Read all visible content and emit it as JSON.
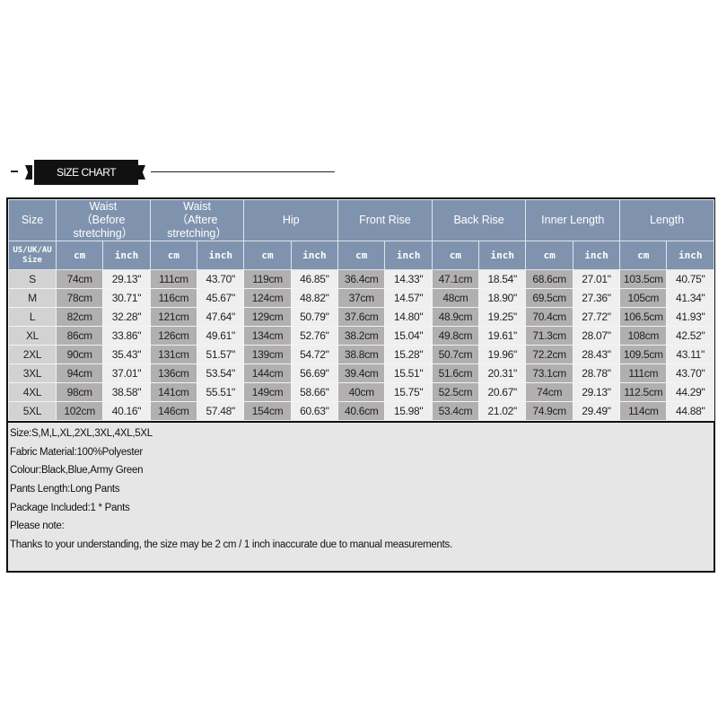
{
  "banner": {
    "title": "SIZE CHART"
  },
  "table": {
    "header_top": [
      {
        "label": "Size",
        "sub": ""
      },
      {
        "label": "Waist",
        "sub": "（Before stretching）"
      },
      {
        "label": "Waist",
        "sub": "（Aftere stretching）"
      },
      {
        "label": "Hip",
        "sub": ""
      },
      {
        "label": "Front Rise",
        "sub": ""
      },
      {
        "label": "Back Rise",
        "sub": ""
      },
      {
        "label": "Inner Length",
        "sub": ""
      },
      {
        "label": "Length",
        "sub": ""
      }
    ],
    "size_subheader": "US/UK/AU Size",
    "unit_cm": "cm",
    "unit_inch": "inch",
    "rows": [
      [
        "S",
        "74cm",
        "29.13\"",
        "111cm",
        "43.70\"",
        "119cm",
        "46.85\"",
        "36.4cm",
        "14.33\"",
        "47.1cm",
        "18.54\"",
        "68.6cm",
        "27.01\"",
        "103.5cm",
        "40.75\""
      ],
      [
        "M",
        "78cm",
        "30.71\"",
        "116cm",
        "45.67\"",
        "124cm",
        "48.82\"",
        "37cm",
        "14.57\"",
        "48cm",
        "18.90\"",
        "69.5cm",
        "27.36\"",
        "105cm",
        "41.34\""
      ],
      [
        "L",
        "82cm",
        "32.28\"",
        "121cm",
        "47.64\"",
        "129cm",
        "50.79\"",
        "37.6cm",
        "14.80\"",
        "48.9cm",
        "19.25\"",
        "70.4cm",
        "27.72\"",
        "106.5cm",
        "41.93\""
      ],
      [
        "XL",
        "86cm",
        "33.86\"",
        "126cm",
        "49.61\"",
        "134cm",
        "52.76\"",
        "38.2cm",
        "15.04\"",
        "49.8cm",
        "19.61\"",
        "71.3cm",
        "28.07\"",
        "108cm",
        "42.52\""
      ],
      [
        "2XL",
        "90cm",
        "35.43\"",
        "131cm",
        "51.57\"",
        "139cm",
        "54.72\"",
        "38.8cm",
        "15.28\"",
        "50.7cm",
        "19.96\"",
        "72.2cm",
        "28.43\"",
        "109.5cm",
        "43.11\""
      ],
      [
        "3XL",
        "94cm",
        "37.01\"",
        "136cm",
        "53.54\"",
        "144cm",
        "56.69\"",
        "39.4cm",
        "15.51\"",
        "51.6cm",
        "20.31\"",
        "73.1cm",
        "28.78\"",
        "111cm",
        "43.70\""
      ],
      [
        "4XL",
        "98cm",
        "38.58\"",
        "141cm",
        "55.51\"",
        "149cm",
        "58.66\"",
        "40cm",
        "15.75\"",
        "52.5cm",
        "20.67\"",
        "74cm",
        "29.13\"",
        "112.5cm",
        "44.29\""
      ],
      [
        "5XL",
        "102cm",
        "40.16\"",
        "146cm",
        "57.48\"",
        "154cm",
        "60.63\"",
        "40.6cm",
        "15.98\"",
        "53.4cm",
        "21.02\"",
        "74.9cm",
        "29.49\"",
        "114cm",
        "44.88\""
      ]
    ]
  },
  "notes": [
    "Size:S,M,L,XL,2XL,3XL,4XL,5XL",
    "Fabric Material:100%Polyester",
    "Colour:Black,Blue,Army Green",
    "Pants Length:Long Pants",
    "Package Included:1 * Pants",
    "Please note:",
    "Thanks to your understanding, the size may be 2 cm / 1 inch inaccurate due to manual measurements."
  ],
  "colors": {
    "header": "#8093ae",
    "cm_cell": "#b1afaf",
    "inch_cell": "#efefef",
    "size_cell": "#d2d2d2",
    "notes_bg": "#e6e6e6"
  }
}
